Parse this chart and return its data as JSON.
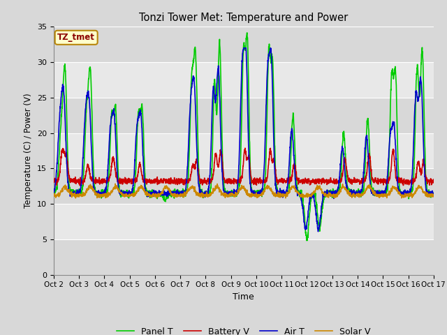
{
  "title": "Tonzi Tower Met: Temperature and Power",
  "xlabel": "Time",
  "ylabel": "Temperature (C) / Power (V)",
  "timezone_label": "TZ_tmet",
  "ylim": [
    0,
    35
  ],
  "yticks": [
    0,
    5,
    10,
    15,
    20,
    25,
    30,
    35
  ],
  "x_tick_labels": [
    "Oct 2",
    "Oct 3",
    "Oct 4",
    "Oct 5",
    "Oct 6",
    "Oct 7",
    "Oct 8",
    "Oct 9",
    "Oct 10",
    "Oct 11",
    "Oct 12",
    "Oct 13",
    "Oct 14",
    "Oct 15",
    "Oct 16",
    "Oct 17"
  ],
  "fig_bg": "#d8d8d8",
  "plot_bg_light": "#e8e8e8",
  "plot_bg_dark": "#d0d0d0",
  "grid_color": "#ffffff",
  "panel_t_color": "#00cc00",
  "battery_v_color": "#cc0000",
  "air_t_color": "#0000cc",
  "solar_v_color": "#cc8800",
  "line_width": 1.2,
  "legend_items": [
    "Panel T",
    "Battery V",
    "Air T",
    "Solar V"
  ]
}
